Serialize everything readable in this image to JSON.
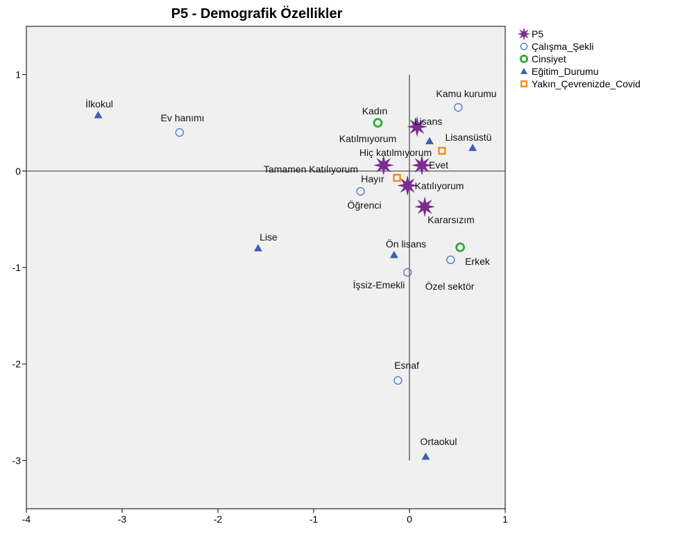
{
  "chart_data": {
    "type": "scatter",
    "title": "P5 - Demografik Özellikler",
    "xlim": [
      -4,
      1
    ],
    "ylim": [
      -3.5,
      1.5
    ],
    "x_ticks": [
      -4,
      -3,
      -2,
      -1,
      0,
      1
    ],
    "y_ticks": [
      1,
      0,
      -1,
      -2,
      -3
    ],
    "x_tick_labels": [
      "-4",
      "-3",
      "-2",
      "-1",
      "0",
      "1"
    ],
    "y_tick_labels": [
      "1",
      "0",
      "-1",
      "-2",
      "-3"
    ],
    "reference_lines": {
      "horizontal_y": 0,
      "vertical_x": 0,
      "horizontal_x_range": [
        -4,
        1
      ],
      "vertical_y_range": [
        -3,
        1
      ]
    },
    "legend_position": "top-right, outside plot",
    "grid": false,
    "series": [
      {
        "name": "P5",
        "marker": "star",
        "color": "#7b2d8e",
        "points": [
          {
            "label": "Lisans",
            "x": 0.08,
            "y": 0.46
          },
          {
            "label": "Katılmıyorum",
            "x": -0.27,
            "y": 0.06
          },
          {
            "label": "Hiç katılmıyorum",
            "x": 0.13,
            "y": 0.06
          },
          {
            "label": "Katılıyorum",
            "x": -0.02,
            "y": -0.15
          },
          {
            "label": "Kararsızım",
            "x": 0.16,
            "y": -0.37
          }
        ]
      },
      {
        "name": "Çalışma_Şekli",
        "marker": "circle-open",
        "color": "#4a72c4",
        "points": [
          {
            "label": "Kamu kurumu",
            "x": 0.51,
            "y": 0.66
          },
          {
            "label": "Ev hanımı",
            "x": -2.4,
            "y": 0.4
          },
          {
            "label": "Öğrenci",
            "x": -0.51,
            "y": -0.21
          },
          {
            "label": "Özel sektör",
            "x": 0.43,
            "y": -0.92
          },
          {
            "label": "İşsiz-Emekli",
            "x": -0.02,
            "y": -1.05
          },
          {
            "label": "Esnaf",
            "x": -0.12,
            "y": -2.17
          }
        ]
      },
      {
        "name": "Cinsiyet",
        "marker": "circle-open-thick",
        "color": "#2eaa3a",
        "points": [
          {
            "label": "Kadın",
            "x": -0.33,
            "y": 0.5
          },
          {
            "label": "Erkek",
            "x": 0.53,
            "y": -0.79
          }
        ]
      },
      {
        "name": "Eğitim_Durumu",
        "marker": "triangle",
        "color": "#3d5fb5",
        "points": [
          {
            "label": "İlkokul",
            "x": -3.25,
            "y": 0.58
          },
          {
            "label": "Lisansüstü",
            "x": 0.66,
            "y": 0.24
          },
          {
            "label": "",
            "x": 0.21,
            "y": 0.31
          },
          {
            "label": "Lise",
            "x": -1.58,
            "y": -0.8
          },
          {
            "label": "Ön lisans",
            "x": -0.16,
            "y": -0.87
          },
          {
            "label": "Ortaokul",
            "x": 0.17,
            "y": -2.96
          }
        ]
      },
      {
        "name": "Yakın_Çevrenizde_Covid",
        "marker": "square-open",
        "color": "#f08c1e",
        "points": [
          {
            "label": "Evet",
            "x": 0.34,
            "y": 0.21
          },
          {
            "label": "Hayır",
            "x": -0.13,
            "y": -0.07
          }
        ]
      }
    ],
    "text_labels": [
      {
        "text": "İlkokul"
      },
      {
        "text": "Ev hanımı"
      },
      {
        "text": "Kamu kurumu"
      },
      {
        "text": "Kadın"
      },
      {
        "text": "Lisans"
      },
      {
        "text": "Katılmıyorum"
      },
      {
        "text": "Lisansüstü"
      },
      {
        "text": "Hiç katılmıyorum"
      },
      {
        "text": "Evet"
      },
      {
        "text": "Tamamen Katılıyorum"
      },
      {
        "text": "Hayır"
      },
      {
        "text": "Katılıyorum"
      },
      {
        "text": "Öğrenci"
      },
      {
        "text": "Kararsızım"
      },
      {
        "text": "Lise"
      },
      {
        "text": "Ön lisans"
      },
      {
        "text": "Erkek"
      },
      {
        "text": "İşsiz-Emekli"
      },
      {
        "text": "Özel sektör"
      },
      {
        "text": "Esnaf"
      },
      {
        "text": "Ortaokul"
      }
    ]
  }
}
